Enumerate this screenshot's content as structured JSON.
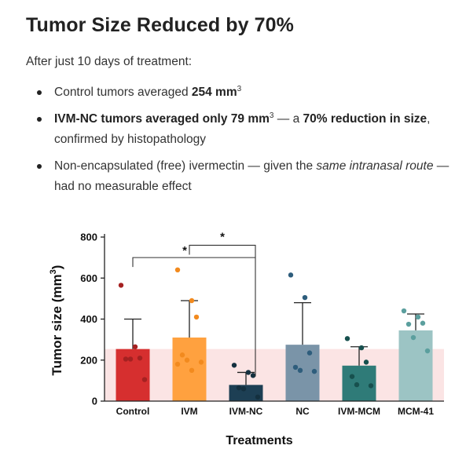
{
  "heading": "Tumor Size Reduced by 70%",
  "intro": "After just 10 days of treatment:",
  "bullets": {
    "b1": {
      "text": "Control tumors averaged ",
      "bold": "254 mm",
      "sup": "3"
    },
    "b2": {
      "bold1": "IVM-NC tumors averaged only 79 mm",
      "sup": "3",
      "text1": " — a ",
      "bold2": "70% reduction in size",
      "text2": ", confirmed by histopathology"
    },
    "b3": {
      "text1": "Non-encapsulated (free) ivermectin — given the ",
      "italic": "same intranasal route",
      "text2": " — had no measurable effect"
    }
  },
  "chart_data": {
    "type": "bar",
    "title": "",
    "xlabel": "Treatments",
    "ylabel": "Tumor size (mm",
    "ylabel_sup": "3",
    "ylabel_close": ")",
    "ylim": [
      0,
      800
    ],
    "yticks": [
      "0",
      "200",
      "400",
      "600",
      "800"
    ],
    "categories": [
      "Control",
      "IVM",
      "IVM-NC",
      "NC",
      "IVM-MCM",
      "MCM-41"
    ],
    "values": [
      254,
      310,
      79,
      275,
      173,
      345
    ],
    "error_upper": [
      400,
      490,
      140,
      480,
      265,
      425
    ],
    "colors": [
      "#d62f2f",
      "#ffa13f",
      "#1d3f54",
      "#7a94a8",
      "#2f7b78",
      "#9cc4c4"
    ],
    "point_colors": [
      "#a52121",
      "#f28a1e",
      "#14303f",
      "#2e5d7c",
      "#17504e",
      "#5b9f9e"
    ],
    "points": [
      [
        565,
        265,
        210,
        205,
        205,
        105
      ],
      [
        640,
        490,
        410,
        225,
        200,
        190,
        180,
        150
      ],
      [
        175,
        140,
        125,
        65,
        60,
        20
      ],
      [
        615,
        505,
        235,
        165,
        150,
        145
      ],
      [
        305,
        260,
        190,
        120,
        80,
        75
      ],
      [
        440,
        410,
        380,
        375,
        310,
        245
      ]
    ],
    "reference_band": 254,
    "reference_color": "#fbe4e4",
    "annotations": [
      "*",
      "*"
    ]
  }
}
